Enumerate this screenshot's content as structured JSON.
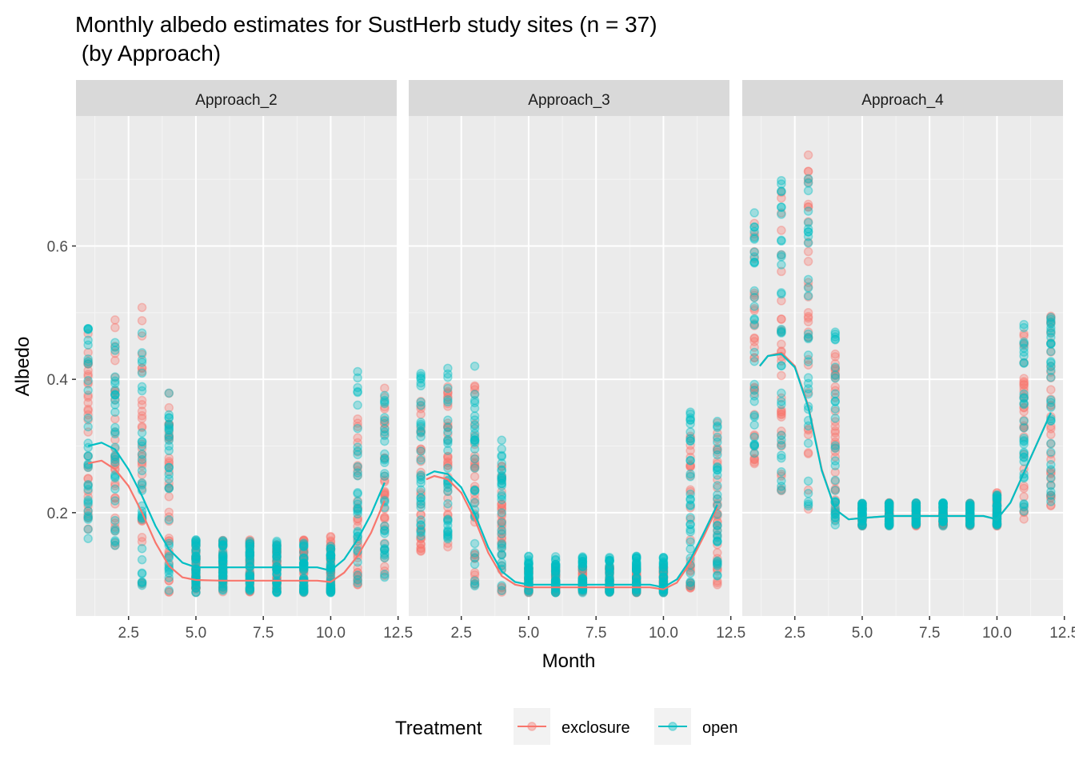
{
  "chart_data": {
    "type": "scatter",
    "title": "Monthly albedo estimates for SustHerb study sites (n = 37)",
    "subtitle": " (by Approach)",
    "xlabel": "Month",
    "ylabel": "Albedo",
    "xlim": [
      0.55,
      12.45
    ],
    "ylim": [
      0.045,
      0.795
    ],
    "x_ticks": [
      2.5,
      5.0,
      7.5,
      10.0,
      12.5
    ],
    "x_tick_labels": [
      "2.5",
      "5.0",
      "7.5",
      "10.0",
      "12.5"
    ],
    "y_ticks": [
      0.2,
      0.4,
      0.6
    ],
    "y_tick_labels": [
      "0.2",
      "0.4",
      "0.6"
    ],
    "grid": true,
    "legend": {
      "title": "Treatment",
      "position": "bottom",
      "entries": [
        {
          "label": "exclosure",
          "color": "#F8766D"
        },
        {
          "label": "open",
          "color": "#00BFC4"
        }
      ]
    },
    "colors": {
      "exclosure": "#F8766D",
      "open": "#00BFC4",
      "panel_bg": "#EBEBEB",
      "strip_bg": "#D9D9D9"
    },
    "panels": [
      {
        "label": "Approach_2",
        "point_ranges": {
          "exclosure": [
            [
              1,
              0.15,
              0.47
            ],
            [
              2,
              0.15,
              0.5
            ],
            [
              3,
              0.09,
              0.51
            ],
            [
              4,
              0.08,
              0.38
            ],
            [
              5,
              0.08,
              0.16
            ],
            [
              6,
              0.08,
              0.16
            ],
            [
              7,
              0.08,
              0.16
            ],
            [
              8,
              0.08,
              0.16
            ],
            [
              9,
              0.08,
              0.16
            ],
            [
              10,
              0.08,
              0.165
            ],
            [
              11,
              0.09,
              0.36
            ],
            [
              12,
              0.1,
              0.4
            ]
          ],
          "open": [
            [
              1,
              0.16,
              0.49
            ],
            [
              2,
              0.15,
              0.47
            ],
            [
              3,
              0.09,
              0.48
            ],
            [
              4,
              0.08,
              0.38
            ],
            [
              5,
              0.08,
              0.16
            ],
            [
              6,
              0.08,
              0.16
            ],
            [
              7,
              0.08,
              0.16
            ],
            [
              8,
              0.08,
              0.16
            ],
            [
              9,
              0.08,
              0.16
            ],
            [
              10,
              0.08,
              0.16
            ],
            [
              11,
              0.09,
              0.42
            ],
            [
              12,
              0.1,
              0.39
            ]
          ]
        },
        "smooth": {
          "exclosure": [
            [
              1,
              0.274
            ],
            [
              1.5,
              0.278
            ],
            [
              2,
              0.265
            ],
            [
              2.5,
              0.24
            ],
            [
              3,
              0.2
            ],
            [
              3.5,
              0.155
            ],
            [
              4,
              0.12
            ],
            [
              4.5,
              0.103
            ],
            [
              5,
              0.099
            ],
            [
              6,
              0.098
            ],
            [
              7,
              0.098
            ],
            [
              8,
              0.098
            ],
            [
              9,
              0.098
            ],
            [
              9.5,
              0.098
            ],
            [
              10,
              0.096
            ],
            [
              10.5,
              0.11
            ],
            [
              11,
              0.135
            ],
            [
              11.5,
              0.17
            ],
            [
              12,
              0.218
            ]
          ],
          "open": [
            [
              1,
              0.3
            ],
            [
              1.5,
              0.305
            ],
            [
              2,
              0.295
            ],
            [
              2.5,
              0.265
            ],
            [
              3,
              0.225
            ],
            [
              3.5,
              0.18
            ],
            [
              4,
              0.145
            ],
            [
              4.5,
              0.125
            ],
            [
              5,
              0.118
            ],
            [
              6,
              0.118
            ],
            [
              7,
              0.118
            ],
            [
              8,
              0.118
            ],
            [
              9,
              0.118
            ],
            [
              9.5,
              0.118
            ],
            [
              10,
              0.113
            ],
            [
              10.5,
              0.13
            ],
            [
              11,
              0.16
            ],
            [
              11.5,
              0.198
            ],
            [
              12,
              0.245
            ]
          ]
        }
      },
      {
        "label": "Approach_3",
        "point_ranges": {
          "exclosure": [
            [
              1,
              0.14,
              0.39
            ],
            [
              2,
              0.14,
              0.39
            ],
            [
              3,
              0.085,
              0.4
            ],
            [
              4,
              0.08,
              0.29
            ],
            [
              5,
              0.08,
              0.12
            ],
            [
              6,
              0.08,
              0.12
            ],
            [
              7,
              0.08,
              0.12
            ],
            [
              8,
              0.08,
              0.12
            ],
            [
              9,
              0.08,
              0.12
            ],
            [
              10,
              0.08,
              0.12
            ],
            [
              11,
              0.085,
              0.33
            ],
            [
              12,
              0.09,
              0.34
            ]
          ],
          "open": [
            [
              1,
              0.15,
              0.41
            ],
            [
              2,
              0.15,
              0.42
            ],
            [
              3,
              0.09,
              0.42
            ],
            [
              4,
              0.08,
              0.31
            ],
            [
              5,
              0.08,
              0.135
            ],
            [
              6,
              0.08,
              0.135
            ],
            [
              7,
              0.08,
              0.135
            ],
            [
              8,
              0.08,
              0.135
            ],
            [
              9,
              0.08,
              0.135
            ],
            [
              10,
              0.08,
              0.135
            ],
            [
              11,
              0.09,
              0.36
            ],
            [
              12,
              0.1,
              0.345
            ]
          ]
        },
        "smooth": {
          "exclosure": [
            [
              1.2,
              0.25
            ],
            [
              1.5,
              0.255
            ],
            [
              2,
              0.25
            ],
            [
              2.5,
              0.23
            ],
            [
              3,
              0.19
            ],
            [
              3.5,
              0.14
            ],
            [
              4,
              0.105
            ],
            [
              4.5,
              0.092
            ],
            [
              5,
              0.088
            ],
            [
              6,
              0.088
            ],
            [
              7,
              0.088
            ],
            [
              8,
              0.088
            ],
            [
              9,
              0.088
            ],
            [
              9.5,
              0.088
            ],
            [
              10,
              0.085
            ],
            [
              10.5,
              0.095
            ],
            [
              11,
              0.125
            ],
            [
              11.5,
              0.165
            ],
            [
              12,
              0.208
            ]
          ],
          "open": [
            [
              1.2,
              0.256
            ],
            [
              1.5,
              0.262
            ],
            [
              2,
              0.258
            ],
            [
              2.5,
              0.238
            ],
            [
              3,
              0.198
            ],
            [
              3.5,
              0.148
            ],
            [
              4,
              0.112
            ],
            [
              4.5,
              0.096
            ],
            [
              5,
              0.092
            ],
            [
              6,
              0.092
            ],
            [
              7,
              0.092
            ],
            [
              8,
              0.092
            ],
            [
              9,
              0.092
            ],
            [
              9.5,
              0.092
            ],
            [
              10,
              0.088
            ],
            [
              10.5,
              0.1
            ],
            [
              11,
              0.13
            ],
            [
              11.5,
              0.17
            ],
            [
              12,
              0.212
            ]
          ]
        }
      },
      {
        "label": "Approach_4",
        "point_ranges": {
          "exclosure": [
            [
              1,
              0.27,
              0.64
            ],
            [
              2,
              0.23,
              0.71
            ],
            [
              3,
              0.2,
              0.75
            ],
            [
              4,
              0.18,
              0.47
            ],
            [
              5,
              0.18,
              0.215
            ],
            [
              6,
              0.18,
              0.215
            ],
            [
              7,
              0.18,
              0.215
            ],
            [
              8,
              0.18,
              0.215
            ],
            [
              9,
              0.18,
              0.215
            ],
            [
              10,
              0.18,
              0.23
            ],
            [
              11,
              0.19,
              0.47
            ],
            [
              12,
              0.21,
              0.5
            ]
          ],
          "open": [
            [
              1,
              0.27,
              0.65
            ],
            [
              2,
              0.23,
              0.72
            ],
            [
              3,
              0.2,
              0.76
            ],
            [
              4,
              0.18,
              0.475
            ],
            [
              5,
              0.18,
              0.215
            ],
            [
              6,
              0.18,
              0.215
            ],
            [
              7,
              0.18,
              0.215
            ],
            [
              8,
              0.18,
              0.215
            ],
            [
              9,
              0.18,
              0.215
            ],
            [
              10,
              0.18,
              0.23
            ],
            [
              11,
              0.19,
              0.49
            ],
            [
              12,
              0.21,
              0.5
            ]
          ]
        },
        "smooth": {
          "exclosure": [
            [
              1.2,
              0.42
            ],
            [
              1.5,
              0.435
            ],
            [
              2,
              0.44
            ],
            [
              2.5,
              0.42
            ],
            [
              3,
              0.36
            ],
            [
              3.5,
              0.265
            ],
            [
              4,
              0.205
            ],
            [
              4.5,
              0.19
            ],
            [
              5,
              0.192
            ],
            [
              6,
              0.195
            ],
            [
              7,
              0.195
            ],
            [
              8,
              0.195
            ],
            [
              9,
              0.195
            ],
            [
              9.5,
              0.195
            ],
            [
              10,
              0.19
            ],
            [
              10.5,
              0.215
            ],
            [
              11,
              0.26
            ],
            [
              11.5,
              0.305
            ],
            [
              12,
              0.35
            ]
          ],
          "open": [
            [
              1.2,
              0.42
            ],
            [
              1.5,
              0.435
            ],
            [
              2,
              0.438
            ],
            [
              2.5,
              0.418
            ],
            [
              3,
              0.358
            ],
            [
              3.5,
              0.263
            ],
            [
              4,
              0.205
            ],
            [
              4.5,
              0.19
            ],
            [
              5,
              0.192
            ],
            [
              6,
              0.195
            ],
            [
              7,
              0.195
            ],
            [
              8,
              0.195
            ],
            [
              9,
              0.195
            ],
            [
              9.5,
              0.195
            ],
            [
              10,
              0.19
            ],
            [
              10.5,
              0.215
            ],
            [
              11,
              0.26
            ],
            [
              11.5,
              0.305
            ],
            [
              12,
              0.35
            ]
          ]
        }
      }
    ]
  }
}
